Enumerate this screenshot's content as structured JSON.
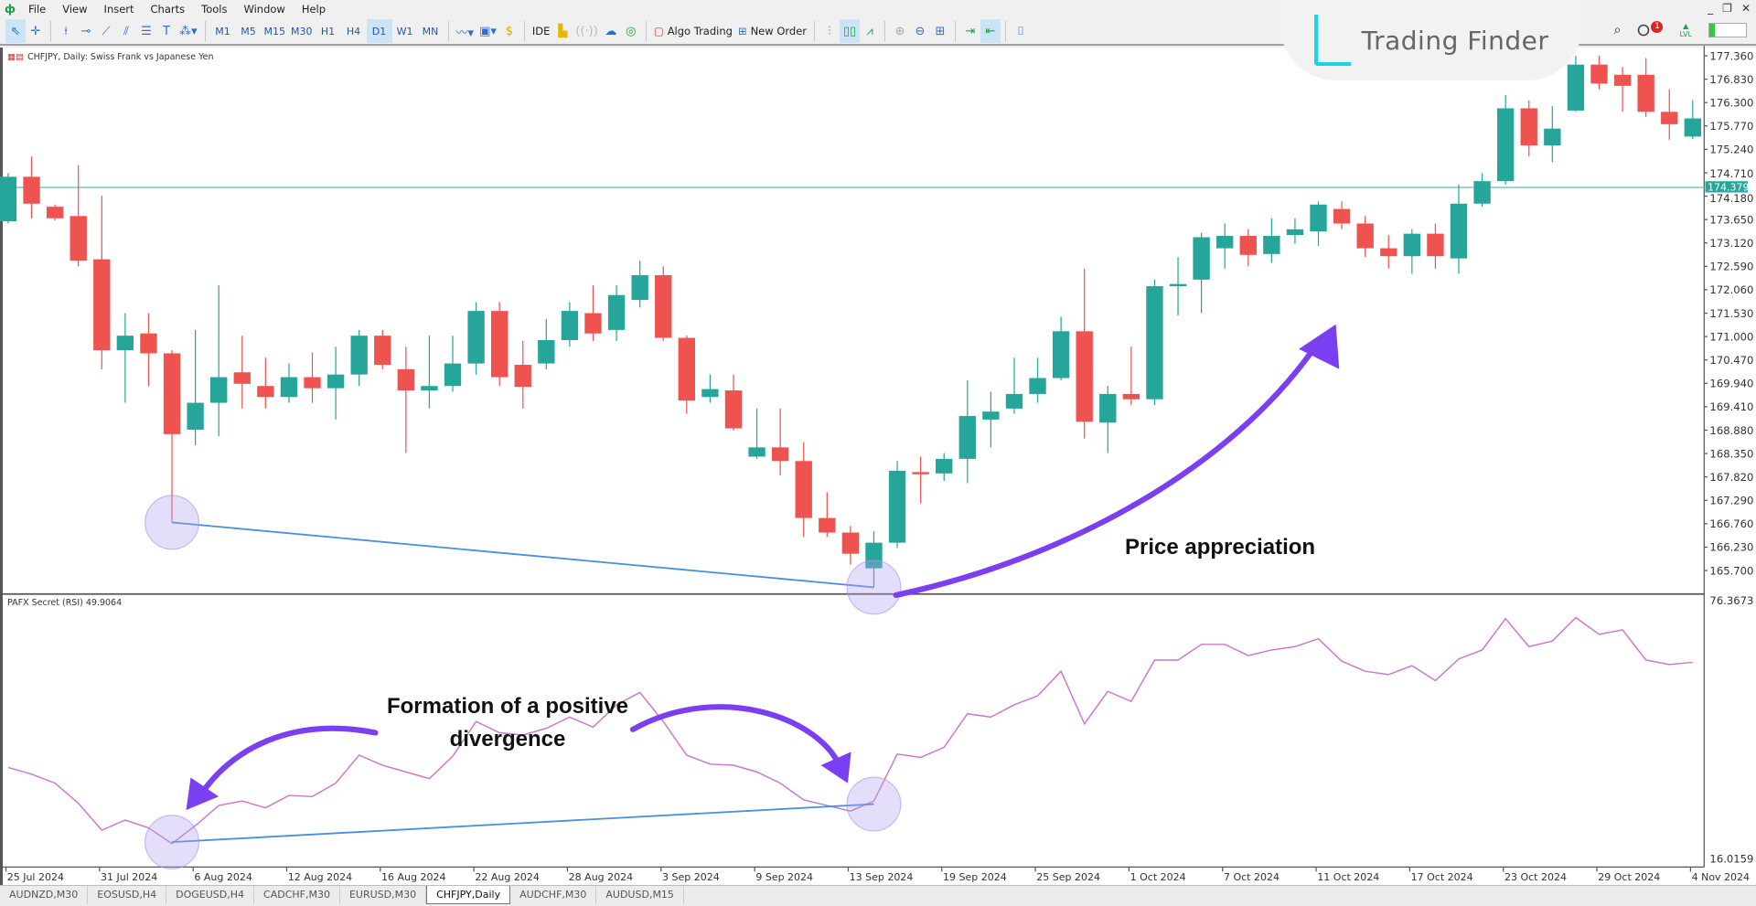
{
  "menu": [
    "File",
    "View",
    "Insert",
    "Charts",
    "Tools",
    "Window",
    "Help"
  ],
  "toolbar": {
    "timeframes": [
      "M1",
      "M5",
      "M15",
      "M30",
      "H1",
      "H4",
      "D1",
      "W1",
      "MN"
    ],
    "selected_timeframe": "D1",
    "ide_label": "IDE",
    "algo_trading": "Algo Trading",
    "new_order": "New Order",
    "notification_count": "1",
    "level_label": "LVL"
  },
  "brand": {
    "name": "Trading Finder",
    "accent": "#19d3e6"
  },
  "chart": {
    "title": "CHFJPY, Daily:  Swiss Frank vs Japanese Yen",
    "current_price": "174.379",
    "price_ticks": [
      "177.360",
      "176.830",
      "176.300",
      "175.770",
      "175.240",
      "174.710",
      "174.180",
      "173.650",
      "173.120",
      "172.590",
      "172.060",
      "171.530",
      "171.000",
      "170.470",
      "169.940",
      "169.410",
      "168.880",
      "168.350",
      "167.820",
      "167.290",
      "166.760",
      "166.230",
      "165.700"
    ],
    "time_ticks": [
      "25 Jul 2024",
      "31 Jul 2024",
      "6 Aug 2024",
      "12 Aug 2024",
      "16 Aug 2024",
      "22 Aug 2024",
      "28 Aug 2024",
      "3 Sep 2024",
      "9 Sep 2024",
      "13 Sep 2024",
      "19 Sep 2024",
      "25 Sep 2024",
      "1 Oct 2024",
      "7 Oct 2024",
      "11 Oct 2024",
      "17 Oct 2024",
      "23 Oct 2024",
      "29 Oct 2024",
      "4 Nov 2024"
    ],
    "colors": {
      "bull": "#26a69a",
      "bear": "#ef5350",
      "divergence": "#4a90d9",
      "arrow": "#7b3ff2",
      "rsi": "#cc77cc"
    },
    "annotation_price": "Price appreciation",
    "annotation_divergence": [
      "Formation of a positive",
      "divergence"
    ]
  },
  "indicator": {
    "label": "PAFX Secret (RSI) 49.9064",
    "max": "76.3673",
    "min": "16.0159"
  },
  "chart_data": {
    "type": "candlestick",
    "ohlc": [
      [
        173.61,
        174.7,
        173.56,
        174.62
      ],
      [
        174.62,
        175.08,
        173.68,
        174.01
      ],
      [
        173.94,
        173.99,
        173.63,
        173.68
      ],
      [
        173.73,
        174.88,
        172.59,
        172.72
      ],
      [
        172.75,
        174.19,
        170.26,
        170.69
      ],
      [
        170.69,
        171.53,
        169.5,
        171.02
      ],
      [
        171.07,
        171.53,
        169.88,
        170.62
      ],
      [
        170.62,
        170.69,
        166.79,
        168.79
      ],
      [
        168.89,
        171.15,
        168.54,
        169.5
      ],
      [
        169.5,
        172.16,
        168.74,
        170.08
      ],
      [
        170.19,
        171.02,
        169.37,
        169.93
      ],
      [
        169.88,
        170.52,
        169.37,
        169.63
      ],
      [
        169.63,
        170.39,
        169.5,
        170.08
      ],
      [
        170.08,
        170.64,
        169.5,
        169.83
      ],
      [
        169.83,
        170.77,
        169.12,
        170.14
      ],
      [
        170.14,
        171.15,
        169.88,
        171.02
      ],
      [
        171.02,
        171.15,
        170.26,
        170.36
      ],
      [
        170.26,
        170.77,
        168.36,
        169.78
      ],
      [
        169.78,
        171.02,
        169.37,
        169.88
      ],
      [
        169.88,
        171.02,
        169.75,
        170.39
      ],
      [
        170.39,
        171.78,
        170.14,
        171.58
      ],
      [
        171.58,
        171.78,
        169.88,
        170.08
      ],
      [
        170.36,
        170.9,
        169.37,
        169.86
      ],
      [
        170.39,
        171.4,
        170.26,
        170.92
      ],
      [
        170.92,
        171.78,
        170.77,
        171.58
      ],
      [
        171.53,
        172.16,
        170.9,
        171.07
      ],
      [
        171.15,
        172.16,
        170.9,
        171.94
      ],
      [
        171.83,
        172.72,
        171.66,
        172.39
      ],
      [
        172.39,
        172.59,
        170.9,
        170.97
      ],
      [
        170.97,
        171.02,
        169.25,
        169.55
      ],
      [
        169.63,
        170.14,
        169.5,
        169.81
      ],
      [
        169.78,
        170.14,
        168.87,
        168.92
      ],
      [
        168.28,
        169.37,
        168.23,
        168.49
      ],
      [
        168.49,
        169.37,
        167.85,
        168.18
      ],
      [
        168.18,
        168.61,
        166.46,
        166.89
      ],
      [
        166.89,
        167.47,
        166.46,
        166.56
      ],
      [
        166.56,
        166.71,
        165.83,
        166.08
      ],
      [
        165.75,
        166.59,
        165.32,
        166.33
      ],
      [
        166.33,
        168.18,
        166.21,
        167.96
      ],
      [
        167.93,
        168.28,
        167.22,
        167.88
      ],
      [
        167.9,
        168.36,
        167.73,
        168.23
      ],
      [
        168.23,
        170.01,
        167.68,
        169.2
      ],
      [
        169.12,
        169.75,
        168.49,
        169.3
      ],
      [
        169.37,
        170.52,
        169.25,
        169.7
      ],
      [
        169.7,
        170.52,
        169.5,
        170.06
      ],
      [
        170.06,
        171.45,
        170.01,
        171.12
      ],
      [
        171.12,
        172.54,
        168.69,
        169.07
      ],
      [
        169.05,
        169.88,
        168.36,
        169.7
      ],
      [
        169.7,
        170.77,
        169.45,
        169.58
      ],
      [
        169.58,
        172.29,
        169.45,
        172.14
      ],
      [
        172.14,
        172.8,
        171.48,
        172.19
      ],
      [
        172.29,
        173.35,
        171.53,
        173.25
      ],
      [
        173.0,
        173.56,
        172.54,
        173.28
      ],
      [
        173.28,
        173.43,
        172.59,
        172.85
      ],
      [
        172.87,
        173.68,
        172.67,
        173.28
      ],
      [
        173.3,
        173.68,
        173.1,
        173.43
      ],
      [
        173.38,
        174.06,
        173.05,
        173.99
      ],
      [
        173.89,
        174.06,
        173.43,
        173.56
      ],
      [
        173.56,
        173.73,
        172.8,
        173.0
      ],
      [
        173.0,
        173.3,
        172.54,
        172.82
      ],
      [
        172.82,
        173.43,
        172.42,
        173.33
      ],
      [
        173.33,
        173.56,
        172.54,
        172.82
      ],
      [
        172.77,
        174.44,
        172.42,
        174.01
      ],
      [
        174.01,
        174.7,
        173.94,
        174.52
      ],
      [
        174.52,
        176.47,
        174.44,
        176.17
      ],
      [
        176.17,
        176.35,
        175.08,
        175.33
      ],
      [
        175.33,
        176.22,
        174.95,
        175.71
      ],
      [
        176.12,
        177.36,
        176.09,
        177.16
      ],
      [
        177.16,
        177.36,
        176.6,
        176.73
      ],
      [
        176.93,
        177.11,
        176.09,
        176.68
      ],
      [
        176.93,
        177.31,
        175.97,
        176.09
      ],
      [
        176.09,
        176.6,
        175.46,
        175.81
      ],
      [
        175.53,
        176.35,
        175.47,
        175.94
      ]
    ],
    "rsi": [
      37.78,
      36.23,
      34.15,
      29.49,
      23.27,
      25.6,
      23.79,
      20.16,
      24.31,
      28.97,
      30.01,
      28.45,
      31.3,
      31.04,
      34.15,
      40.63,
      38.29,
      36.74,
      35.19,
      40.37,
      48.42,
      45.81,
      45.29,
      46.84,
      49.43,
      47.1,
      52.28,
      55.13,
      48.42,
      40.63,
      38.55,
      38.29,
      36.74,
      34.15,
      30.27,
      28.97,
      27.68,
      30.01,
      40.88,
      40.11,
      42.44,
      50.21,
      49.43,
      52.28,
      54.35,
      60.05,
      47.88,
      55.39,
      53.06,
      62.64,
      62.64,
      66.27,
      66.27,
      63.68,
      64.97,
      65.75,
      67.56,
      62.38,
      60.05,
      59.27,
      61.34,
      57.88,
      62.9,
      64.97,
      72.22,
      65.75,
      67.04,
      72.48,
      68.6,
      69.63,
      62.64,
      61.6,
      62.12
    ],
    "ylim": [
      165.7,
      177.36
    ],
    "rsi_ylim": [
      16.0159,
      76.3673
    ],
    "horizontal_line": 174.379,
    "divergence": {
      "price_from_candle": 7,
      "price_to_candle": 37,
      "price_values": [
        166.79,
        165.32
      ],
      "rsi_values": [
        20.5,
        29.3
      ]
    }
  },
  "tabs": [
    "AUDNZD,M30",
    "EOSUSD,H4",
    "DOGEUSD,H4",
    "CADCHF,M30",
    "EURUSD,M30",
    "CHFJPY,Daily",
    "AUDCHF,M30",
    "AUDUSD,M15"
  ],
  "active_tab": "CHFJPY,Daily"
}
